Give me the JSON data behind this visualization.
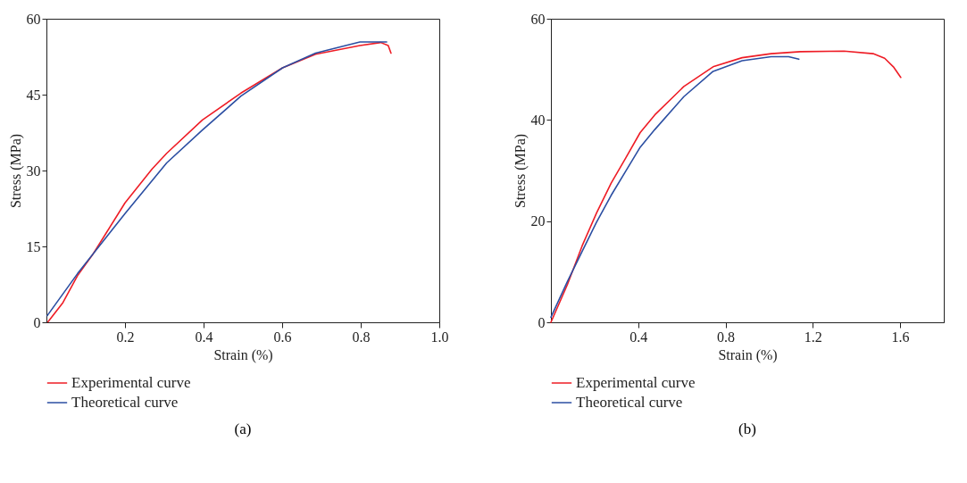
{
  "chart_data": [
    {
      "type": "line",
      "title": "(a)",
      "xlabel": "Strain (%)",
      "ylabel": "Stress (MPa)",
      "xlim": [
        0,
        1.0
      ],
      "ylim": [
        0,
        60
      ],
      "xticks": [
        0.2,
        0.4,
        0.6,
        0.8,
        {
          "value": 1.0,
          "label": "1.0"
        }
      ],
      "yticks": [
        0,
        15,
        30,
        45,
        60
      ],
      "grid": false,
      "legend": "bottom",
      "line_style": "solid",
      "series": [
        {
          "name": "Experimental curve",
          "color": "#ee1c25",
          "x": [
            0.004,
            0.042,
            0.079,
            0.117,
            0.155,
            0.2,
            0.269,
            0.306,
            0.397,
            0.495,
            0.601,
            0.685,
            0.798,
            0.851,
            0.87,
            0.877
          ],
          "values": [
            0.1,
            3.9,
            9.2,
            13.3,
            18,
            23.6,
            30.3,
            33.4,
            40,
            45.3,
            50.3,
            53,
            54.7,
            55.3,
            54.7,
            53.2
          ]
        },
        {
          "name": "Theoretical curve",
          "color": "#2b4ea2",
          "x": [
            0.002,
            0.079,
            0.2,
            0.306,
            0.397,
            0.495,
            0.601,
            0.685,
            0.798,
            0.866
          ],
          "values": [
            1.3,
            9.6,
            21.5,
            31.5,
            38,
            44.7,
            50.3,
            53.2,
            55.4,
            55.4
          ]
        }
      ]
    },
    {
      "type": "line",
      "title": "(b)",
      "xlabel": "Strain (%)",
      "ylabel": "Stress (MPa)",
      "xlim": [
        0,
        1.8
      ],
      "ylim": [
        0,
        60
      ],
      "xticks": [
        0.4,
        0.8,
        1.2,
        1.6
      ],
      "yticks": [
        0,
        20,
        40,
        60
      ],
      "grid": false,
      "legend": "bottom",
      "line_style": "solid",
      "series": [
        {
          "name": "Experimental curve",
          "color": "#ee1c25",
          "x": [
            0,
            0.076,
            0.143,
            0.209,
            0.276,
            0.343,
            0.409,
            0.476,
            0.609,
            0.743,
            0.876,
            1.009,
            1.143,
            1.343,
            1.476,
            1.529,
            1.569,
            1.603
          ],
          "values": [
            0,
            7.5,
            15.1,
            21.6,
            27.5,
            32.5,
            37.5,
            41,
            46.6,
            50.5,
            52.3,
            53.1,
            53.5,
            53.6,
            53.1,
            52.2,
            50.5,
            48.4
          ]
        },
        {
          "name": "Theoretical curve",
          "color": "#2b4ea2",
          "x": [
            0,
            0.076,
            0.143,
            0.209,
            0.276,
            0.343,
            0.409,
            0.476,
            0.609,
            0.743,
            0.876,
            1.009,
            1.089,
            1.136
          ],
          "values": [
            1,
            8.1,
            14,
            19.8,
            25.1,
            29.9,
            34.6,
            38.1,
            44.6,
            49.6,
            51.7,
            52.5,
            52.5,
            52
          ]
        }
      ]
    }
  ]
}
